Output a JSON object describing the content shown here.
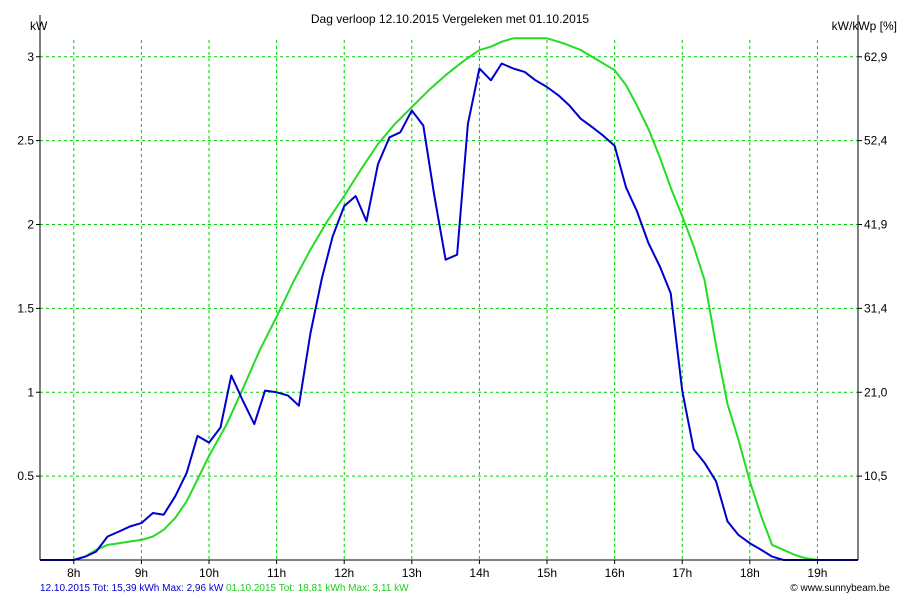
{
  "chart_data": {
    "type": "line",
    "title": "Dag  verloop 12.10.2015   Vergeleken met 01.10.2015",
    "ylabel_left": "kW",
    "ylabel_right": "kW/kWp [%]",
    "xlim_hours": [
      7.5,
      19.6
    ],
    "ylim_kw": [
      0,
      3.1
    ],
    "grid": true,
    "x_ticks": [
      {
        "hour": 8,
        "label": "8h"
      },
      {
        "hour": 9,
        "label": "9h"
      },
      {
        "hour": 10,
        "label": "10h"
      },
      {
        "hour": 11,
        "label": "11h"
      },
      {
        "hour": 12,
        "label": "12h"
      },
      {
        "hour": 13,
        "label": "13h"
      },
      {
        "hour": 14,
        "label": "14h"
      },
      {
        "hour": 15,
        "label": "15h"
      },
      {
        "hour": 16,
        "label": "16h"
      },
      {
        "hour": 17,
        "label": "17h"
      },
      {
        "hour": 18,
        "label": "18h"
      },
      {
        "hour": 19,
        "label": "19h"
      }
    ],
    "y_ticks_left": [
      {
        "value": 0.5,
        "label": "0.5"
      },
      {
        "value": 1,
        "label": "1"
      },
      {
        "value": 1.5,
        "label": "1.5"
      },
      {
        "value": 2,
        "label": "2"
      },
      {
        "value": 2.5,
        "label": "2.5"
      },
      {
        "value": 3,
        "label": "3"
      }
    ],
    "y_ticks_right": [
      {
        "value": 0.5,
        "label": "10,5"
      },
      {
        "value": 1,
        "label": "21,0"
      },
      {
        "value": 1.5,
        "label": "31,4"
      },
      {
        "value": 2,
        "label": "41,9"
      },
      {
        "value": 2.5,
        "label": "52,4"
      },
      {
        "value": 3,
        "label": "62,9"
      }
    ],
    "series": [
      {
        "name": "12.10.2015",
        "color": "#0000cc",
        "x": [
          7.5,
          8.0,
          8.17,
          8.33,
          8.5,
          8.67,
          8.83,
          9.0,
          9.17,
          9.33,
          9.5,
          9.67,
          9.83,
          10.0,
          10.17,
          10.33,
          10.5,
          10.67,
          10.83,
          11.0,
          11.17,
          11.33,
          11.5,
          11.67,
          11.83,
          12.0,
          12.17,
          12.33,
          12.5,
          12.67,
          12.83,
          13.0,
          13.17,
          13.33,
          13.5,
          13.67,
          13.83,
          14.0,
          14.17,
          14.33,
          14.5,
          14.67,
          14.83,
          15.0,
          15.17,
          15.33,
          15.5,
          15.67,
          15.83,
          16.0,
          16.17,
          16.33,
          16.5,
          16.67,
          16.83,
          17.0,
          17.17,
          17.33,
          17.5,
          17.67,
          17.83,
          18.0,
          18.17,
          18.33,
          18.5,
          18.67,
          18.83,
          19.0,
          19.6
        ],
        "values": [
          0,
          0,
          0.02,
          0.05,
          0.14,
          0.17,
          0.2,
          0.22,
          0.28,
          0.27,
          0.38,
          0.52,
          0.74,
          0.7,
          0.79,
          1.1,
          0.95,
          0.81,
          1.01,
          1.0,
          0.98,
          0.92,
          1.35,
          1.68,
          1.93,
          2.11,
          2.17,
          2.02,
          2.36,
          2.52,
          2.55,
          2.68,
          2.59,
          2.18,
          1.79,
          1.82,
          2.6,
          2.93,
          2.86,
          2.96,
          2.93,
          2.91,
          2.86,
          2.82,
          2.77,
          2.71,
          2.63,
          2.58,
          2.53,
          2.47,
          2.22,
          2.08,
          1.89,
          1.75,
          1.59,
          1.01,
          0.66,
          0.58,
          0.47,
          0.23,
          0.15,
          0.1,
          0.06,
          0.02,
          0.0,
          0.0,
          0.0,
          0.0,
          0.0
        ]
      },
      {
        "name": "01.10.2015",
        "color": "#22dd22",
        "x": [
          7.5,
          8.0,
          8.17,
          8.33,
          8.5,
          8.67,
          8.83,
          9.0,
          9.17,
          9.33,
          9.5,
          9.67,
          9.83,
          10.0,
          10.25,
          10.5,
          10.75,
          11.0,
          11.25,
          11.5,
          11.75,
          12.0,
          12.25,
          12.5,
          12.75,
          13.0,
          13.25,
          13.5,
          13.75,
          14.0,
          14.17,
          14.33,
          14.5,
          14.67,
          14.83,
          15.0,
          15.25,
          15.5,
          15.75,
          16.0,
          16.17,
          16.33,
          16.5,
          16.67,
          16.83,
          17.0,
          17.17,
          17.33,
          17.5,
          17.67,
          17.83,
          18.0,
          18.17,
          18.33,
          18.5,
          18.67,
          18.83,
          19.0,
          19.6
        ],
        "values": [
          0,
          0,
          0.02,
          0.06,
          0.09,
          0.1,
          0.11,
          0.12,
          0.14,
          0.18,
          0.25,
          0.35,
          0.48,
          0.62,
          0.8,
          1.02,
          1.25,
          1.45,
          1.66,
          1.85,
          2.02,
          2.17,
          2.33,
          2.48,
          2.6,
          2.7,
          2.8,
          2.89,
          2.97,
          3.04,
          3.06,
          3.09,
          3.11,
          3.11,
          3.11,
          3.11,
          3.08,
          3.04,
          2.98,
          2.92,
          2.83,
          2.71,
          2.57,
          2.4,
          2.22,
          2.05,
          1.87,
          1.67,
          1.28,
          0.93,
          0.72,
          0.47,
          0.26,
          0.09,
          0.06,
          0.03,
          0.01,
          0.0,
          0.0
        ]
      }
    ]
  },
  "footer": {
    "series1_text": "12.10.2015 Tot: 15,39 kWh Max: 2,96 kW",
    "series2_text": "01.10.2015 Tot: 18,81 kWh Max: 3,11 kW",
    "source": "© www.sunnybeam.be"
  },
  "colors": {
    "grid": "#00cc00",
    "axis": "#000000"
  }
}
